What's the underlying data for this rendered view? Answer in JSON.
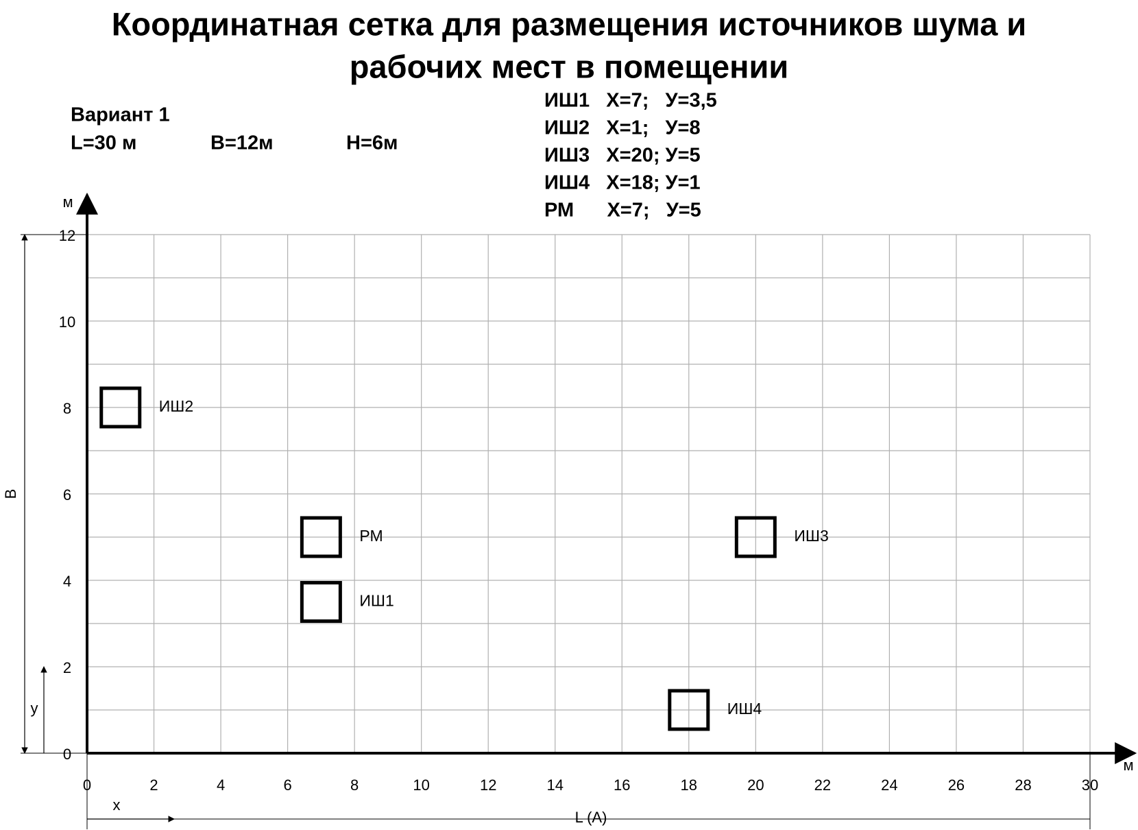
{
  "chart_data": {
    "type": "scatter",
    "title": [
      "Координатная сетка для размещения источников шума и",
      "рабочих мест в помещении"
    ],
    "variant": "Вариант 1",
    "dimensions": [
      "L=30 м",
      "B=12м",
      "H=6м"
    ],
    "coordinates_list": [
      "ИШ1   X=7;   У=3,5",
      "ИШ2   X=1;   У=8",
      "ИШ3   X=20; У=5",
      "ИШ4   X=18; У=1",
      "РМ      X=7;   У=5"
    ],
    "x_axis_label": "L (A)",
    "x_unit": "м",
    "y_axis_label": "B",
    "y_unit": "м",
    "x_arrow_label": "x",
    "y_arrow_label": "y",
    "point_labels": [
      "ИШ1",
      "ИШ2",
      "ИШ3",
      "ИШ4",
      "РМ"
    ],
    "x": [
      7,
      1,
      20,
      18,
      7
    ],
    "values": [
      3.5,
      8,
      5,
      1,
      5
    ],
    "xlim": [
      0,
      30
    ],
    "xticks": [
      0,
      2,
      4,
      6,
      8,
      10,
      12,
      14,
      16,
      18,
      20,
      22,
      24,
      26,
      28,
      30
    ],
    "ylim": [
      0,
      12
    ],
    "yticks": [
      0,
      2,
      4,
      6,
      8,
      10,
      12
    ],
    "yminorticks": [
      1,
      3,
      5,
      7,
      9,
      11
    ],
    "grid": true
  }
}
